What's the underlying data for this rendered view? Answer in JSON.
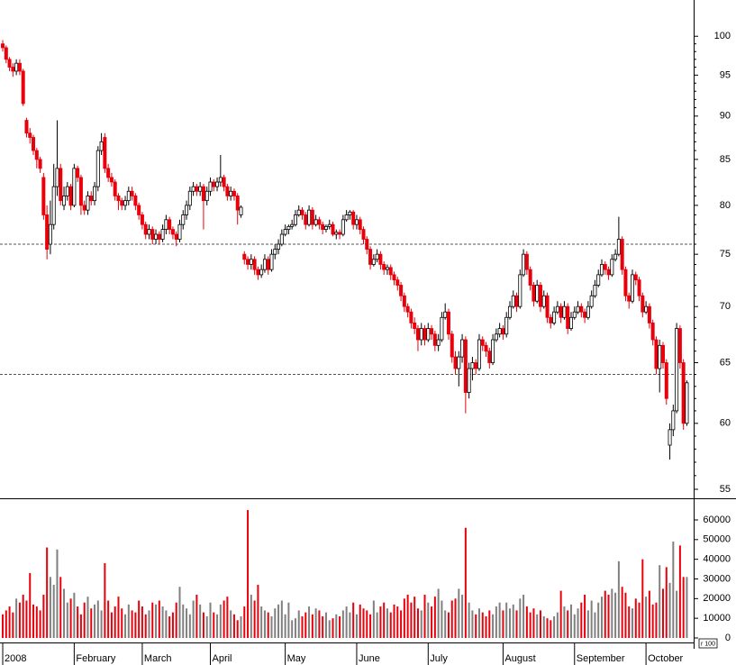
{
  "chart_data": {
    "type": "candlestick",
    "up_color": "#ffffff",
    "down_color": "#e8000b",
    "outline_color": "#000000",
    "volume_up_color": "#808080",
    "reference_lines": [
      76,
      64
    ],
    "log_scale": true,
    "ylim": [
      54.35,
      104.9
    ],
    "yticks": [
      55,
      60,
      65,
      70,
      75,
      80,
      85,
      90,
      95,
      100
    ],
    "volume_ylim": [
      -2300,
      71000
    ],
    "volume_yticks": [
      0,
      10000,
      20000,
      30000,
      40000,
      50000,
      60000
    ],
    "xlim": [
      -0.8,
      203
    ],
    "xticks": [
      {
        "value": 0,
        "label": "2008"
      },
      {
        "value": 21,
        "label": "February"
      },
      {
        "value": 41,
        "label": "March"
      },
      {
        "value": 61,
        "label": "April"
      },
      {
        "value": 83,
        "label": "May"
      },
      {
        "value": 104,
        "label": "June"
      },
      {
        "value": 125,
        "label": "July"
      },
      {
        "value": 147,
        "label": "August"
      },
      {
        "value": 168,
        "label": "September"
      },
      {
        "value": 189,
        "label": "October"
      }
    ],
    "corner_label": "r 100",
    "ohlc": [
      [
        99,
        99.5,
        98,
        98.5
      ],
      [
        98.5,
        98.8,
        96.5,
        97
      ],
      [
        97,
        97.3,
        95.5,
        96
      ],
      [
        96,
        96.5,
        94.8,
        95.5
      ],
      [
        95.5,
        97,
        95,
        96.5
      ],
      [
        96.5,
        97,
        95,
        95.5
      ],
      [
        95.5,
        95.8,
        91.2,
        91.5
      ],
      [
        89.5,
        89.8,
        87.5,
        88
      ],
      [
        88,
        88.6,
        86.8,
        87.5
      ],
      [
        87.5,
        87.8,
        85.5,
        86
      ],
      [
        86,
        86.3,
        84,
        85
      ],
      [
        85,
        85.3,
        83.5,
        84
      ],
      [
        83,
        83.5,
        78.5,
        79
      ],
      [
        79,
        80,
        74.5,
        75.5
      ],
      [
        76,
        80.5,
        75,
        78
      ],
      [
        78,
        84.5,
        77.5,
        82
      ],
      [
        82,
        89.5,
        81,
        84
      ],
      [
        84,
        84.5,
        80,
        80.5
      ],
      [
        80,
        82,
        79.5,
        81
      ],
      [
        81,
        82.5,
        80.5,
        82
      ],
      [
        82,
        82.3,
        79.5,
        80
      ],
      [
        80,
        84.5,
        79.8,
        84
      ],
      [
        84,
        84.3,
        82.5,
        83
      ],
      [
        83,
        83.3,
        79,
        80
      ],
      [
        80,
        80.5,
        79,
        79.5
      ],
      [
        79.5,
        81.5,
        79,
        81
      ],
      [
        81,
        81.5,
        80,
        80.5
      ],
      [
        80.5,
        82.5,
        80,
        82
      ],
      [
        82,
        86.5,
        81.5,
        86
      ],
      [
        86,
        88,
        85.5,
        87
      ],
      [
        87.5,
        88,
        83.5,
        84
      ],
      [
        84,
        84.5,
        82.5,
        83
      ],
      [
        83,
        83.5,
        82,
        82.5
      ],
      [
        82.5,
        82.8,
        80.5,
        81
      ],
      [
        81,
        81.3,
        79.5,
        80.5
      ],
      [
        80.5,
        80.8,
        79.5,
        80
      ],
      [
        80,
        81,
        79.5,
        80.5
      ],
      [
        80.5,
        82,
        80,
        81.5
      ],
      [
        81.5,
        82,
        80.5,
        81
      ],
      [
        81,
        81.3,
        79.5,
        80
      ],
      [
        80,
        80.3,
        78.5,
        79
      ],
      [
        79,
        79.3,
        77.5,
        78
      ],
      [
        78,
        78.3,
        76.5,
        77
      ],
      [
        77,
        78,
        76.5,
        77.5
      ],
      [
        77.5,
        77.8,
        76,
        76.5
      ],
      [
        76.5,
        77.5,
        76,
        77
      ],
      [
        77,
        77.3,
        76,
        76.5
      ],
      [
        76.5,
        78,
        76.2,
        77.5
      ],
      [
        77.5,
        79,
        77,
        78.5
      ],
      [
        78.5,
        78.8,
        77,
        77.5
      ],
      [
        77.5,
        77.8,
        76.5,
        77
      ],
      [
        77,
        77.3,
        75.8,
        76.5
      ],
      [
        76.5,
        78.5,
        76.2,
        78
      ],
      [
        78,
        79.5,
        77.5,
        79
      ],
      [
        79,
        80.5,
        78.5,
        80
      ],
      [
        80,
        82,
        79.5,
        81.5
      ],
      [
        81.5,
        82.5,
        81,
        82
      ],
      [
        82,
        82.3,
        81,
        81.5
      ],
      [
        81.5,
        82.5,
        81,
        82
      ],
      [
        82,
        82.3,
        77.5,
        80.5
      ],
      [
        80.5,
        82,
        80,
        81.5
      ],
      [
        81.5,
        83,
        81,
        82.5
      ],
      [
        82.5,
        82.8,
        81.5,
        82
      ],
      [
        82,
        83,
        81.5,
        82.5
      ],
      [
        82.5,
        85.5,
        82,
        83
      ],
      [
        83,
        83.3,
        81.5,
        82
      ],
      [
        82,
        82.3,
        80.5,
        81
      ],
      [
        81,
        82,
        80.5,
        81.5
      ],
      [
        81.5,
        81.8,
        80.5,
        81
      ],
      [
        81,
        81.3,
        78,
        79.5
      ],
      [
        79,
        80,
        78.7,
        79.8
      ],
      [
        75,
        75.3,
        74,
        74.5
      ],
      [
        74.5,
        74.8,
        73.5,
        74
      ],
      [
        74,
        75,
        73.5,
        74.5
      ],
      [
        74.5,
        74.8,
        73,
        73.5
      ],
      [
        73.5,
        73.8,
        72.5,
        73
      ],
      [
        73,
        74,
        72.7,
        73.5
      ],
      [
        73.5,
        75,
        73.2,
        74.5
      ],
      [
        74.5,
        74.8,
        73,
        73.5
      ],
      [
        73.5,
        75.5,
        73.3,
        75
      ],
      [
        75,
        76,
        74.5,
        75.5
      ],
      [
        75.5,
        76.5,
        75,
        76
      ],
      [
        76,
        77.5,
        75.8,
        77
      ],
      [
        77,
        78,
        76.8,
        77.5
      ],
      [
        77.5,
        78,
        77,
        77.8
      ],
      [
        77.8,
        78.5,
        77.5,
        78
      ],
      [
        78,
        79.5,
        77.8,
        79
      ],
      [
        79,
        80,
        78.8,
        79.5
      ],
      [
        79.5,
        79.8,
        78.5,
        79
      ],
      [
        79,
        79.3,
        77.5,
        78
      ],
      [
        78,
        80,
        77.8,
        79.5
      ],
      [
        79.5,
        79.8,
        77.5,
        78
      ],
      [
        78,
        79,
        77.8,
        78.5
      ],
      [
        78.5,
        78.8,
        77.5,
        78
      ],
      [
        78,
        78.3,
        77,
        77.5
      ],
      [
        77.5,
        78,
        77.2,
        77.8
      ],
      [
        77.8,
        78.5,
        77.5,
        78
      ],
      [
        78,
        78.3,
        76.8,
        77
      ],
      [
        77,
        77.5,
        76.5,
        77.2
      ],
      [
        77.2,
        77.5,
        76.5,
        77
      ],
      [
        77,
        79,
        76.8,
        78.5
      ],
      [
        78.5,
        79.5,
        78.3,
        79
      ],
      [
        79,
        79.5,
        78.5,
        79.3
      ],
      [
        79.3,
        79.5,
        77.5,
        78
      ],
      [
        78,
        79,
        77.5,
        78.5
      ],
      [
        78.5,
        78.8,
        77,
        77.5
      ],
      [
        77.5,
        77.8,
        76,
        76.5
      ],
      [
        76.5,
        76.8,
        75,
        75.5
      ],
      [
        75.5,
        75.8,
        73.5,
        74
      ],
      [
        74,
        75,
        73.8,
        74.5
      ],
      [
        74.5,
        75.5,
        74.2,
        75
      ],
      [
        75,
        75.3,
        73.5,
        74
      ],
      [
        74,
        74.3,
        73,
        73.5
      ],
      [
        73.5,
        74,
        73,
        73.7
      ],
      [
        73.7,
        74,
        72.5,
        73
      ],
      [
        73,
        73.3,
        72,
        72.5
      ],
      [
        72.5,
        72.8,
        71.5,
        72
      ],
      [
        72,
        72.3,
        70.5,
        71
      ],
      [
        71,
        71.3,
        69.5,
        70
      ],
      [
        70,
        70.3,
        69,
        69.5
      ],
      [
        69.5,
        69.8,
        68,
        68.5
      ],
      [
        68.5,
        69,
        67.5,
        68
      ],
      [
        68,
        68.3,
        66,
        67
      ],
      [
        67,
        68.5,
        66.5,
        68
      ],
      [
        68,
        68.3,
        66.5,
        67
      ],
      [
        67,
        68.5,
        66.8,
        68
      ],
      [
        68,
        68.3,
        67,
        67.5
      ],
      [
        67.5,
        67.8,
        66,
        66.5
      ],
      [
        66.5,
        67.5,
        66,
        67
      ],
      [
        67,
        69.5,
        66.8,
        69
      ],
      [
        69,
        70.3,
        68.8,
        69.5
      ],
      [
        69.5,
        69.8,
        67,
        67.5
      ],
      [
        67.5,
        67.8,
        65,
        65.5
      ],
      [
        65.5,
        66,
        64,
        64.5
      ],
      [
        64.5,
        66,
        63,
        65.5
      ],
      [
        65.5,
        67.5,
        65,
        67
      ],
      [
        67,
        67.3,
        60.8,
        62.5
      ],
      [
        62.5,
        65,
        62,
        64.5
      ],
      [
        64.5,
        65.5,
        63.5,
        65
      ],
      [
        65,
        65.3,
        64,
        64.5
      ],
      [
        64.5,
        67.5,
        64.3,
        67
      ],
      [
        67,
        67.3,
        66,
        66.5
      ],
      [
        66.5,
        66.8,
        65.5,
        66
      ],
      [
        66,
        66.3,
        64.5,
        65
      ],
      [
        65,
        67.5,
        64.8,
        67
      ],
      [
        67,
        68,
        66.8,
        67.5
      ],
      [
        67.5,
        68.5,
        67.2,
        68
      ],
      [
        68,
        68.3,
        67,
        67.5
      ],
      [
        67.5,
        69.5,
        67.2,
        69
      ],
      [
        69,
        70.5,
        68.8,
        70
      ],
      [
        70,
        71.5,
        69.8,
        71
      ],
      [
        71,
        71.3,
        69.5,
        70
      ],
      [
        70,
        73.5,
        69.8,
        73
      ],
      [
        73,
        75.5,
        72.8,
        75
      ],
      [
        75,
        75.3,
        73,
        73.5
      ],
      [
        73.5,
        73.8,
        71.5,
        72
      ],
      [
        72,
        72.3,
        70,
        70.5
      ],
      [
        70.5,
        72.5,
        70.3,
        72
      ],
      [
        72,
        72.3,
        69.5,
        70
      ],
      [
        70,
        71.5,
        69.8,
        71
      ],
      [
        71,
        71.3,
        68.5,
        69
      ],
      [
        69,
        69.3,
        68,
        68.5
      ],
      [
        68.5,
        70,
        68.3,
        69.5
      ],
      [
        69.5,
        70.5,
        69.3,
        70
      ],
      [
        70,
        70.3,
        68.5,
        69
      ],
      [
        69,
        70.5,
        68.8,
        70
      ],
      [
        70,
        70.3,
        67.5,
        68
      ],
      [
        68,
        69.5,
        67.8,
        69
      ],
      [
        69,
        70,
        68.8,
        69.5
      ],
      [
        69.5,
        70.5,
        69.3,
        70
      ],
      [
        70,
        70.3,
        69,
        69.5
      ],
      [
        69.5,
        69.8,
        68.5,
        69
      ],
      [
        69,
        70.5,
        68.8,
        70
      ],
      [
        70,
        71.5,
        69.8,
        71
      ],
      [
        71,
        72.5,
        70.8,
        72
      ],
      [
        72,
        73.5,
        71.8,
        73
      ],
      [
        73,
        74.5,
        72.8,
        74
      ],
      [
        74,
        74.3,
        73,
        73.5
      ],
      [
        73.5,
        73.8,
        72.5,
        73
      ],
      [
        73,
        75,
        72.8,
        74.5
      ],
      [
        74.5,
        75.5,
        74.3,
        75
      ],
      [
        75,
        78.8,
        74.8,
        76.5
      ],
      [
        76.5,
        76.8,
        73,
        73.5
      ],
      [
        73.5,
        73.8,
        70.5,
        71
      ],
      [
        71,
        71.3,
        69.8,
        70.5
      ],
      [
        70.5,
        73.5,
        70.3,
        73
      ],
      [
        73,
        73.3,
        72,
        72.5
      ],
      [
        72.5,
        72.8,
        70.5,
        71
      ],
      [
        71,
        71.3,
        69,
        69.5
      ],
      [
        69.5,
        70.5,
        69.3,
        70
      ],
      [
        70,
        70.3,
        68,
        68.5
      ],
      [
        68.5,
        68.8,
        66.5,
        67
      ],
      [
        67,
        67.3,
        64,
        64.5
      ],
      [
        64.5,
        67,
        62.5,
        66.5
      ],
      [
        66.5,
        66.8,
        64.5,
        65
      ],
      [
        65,
        65.3,
        61.5,
        62
      ],
      [
        58.3,
        60,
        57.2,
        59.5
      ],
      [
        59.5,
        61.5,
        59,
        61
      ],
      [
        61,
        68.5,
        60.8,
        68
      ],
      [
        68,
        68.3,
        64.5,
        65
      ],
      [
        65,
        65.3,
        59.5,
        60
      ],
      [
        60,
        63.5,
        59.8,
        63.3
      ]
    ],
    "volume": [
      12000,
      14000,
      16000,
      13000,
      20000,
      18000,
      22000,
      19000,
      33000,
      17000,
      16000,
      14000,
      22000,
      46000,
      31000,
      27000,
      45000,
      31000,
      25000,
      18000,
      20000,
      23000,
      16000,
      12000,
      18000,
      21000,
      15000,
      17000,
      19000,
      14000,
      38000,
      19000,
      13000,
      16000,
      21000,
      15000,
      12000,
      17000,
      14000,
      13000,
      19000,
      16000,
      12000,
      14000,
      18000,
      17000,
      19000,
      16000,
      14000,
      11000,
      13000,
      18000,
      26000,
      17000,
      15000,
      12000,
      19000,
      22000,
      17000,
      13000,
      11000,
      18000,
      13000,
      12000,
      17000,
      19000,
      21000,
      14000,
      12000,
      9000,
      11000,
      16000,
      65000,
      22000,
      19000,
      27000,
      16000,
      14000,
      13000,
      11000,
      15000,
      17000,
      19000,
      12000,
      18000,
      9000,
      10000,
      14000,
      11000,
      13000,
      16000,
      12000,
      15000,
      14000,
      11000,
      13000,
      9000,
      10000,
      12000,
      11000,
      14000,
      16000,
      13000,
      18000,
      12000,
      17000,
      15000,
      14000,
      12000,
      19000,
      13000,
      16000,
      18000,
      15000,
      13000,
      17000,
      16000,
      14000,
      20000,
      22000,
      18000,
      21000,
      15000,
      14000,
      22000,
      18000,
      16000,
      21000,
      25000,
      19000,
      14000,
      13000,
      19000,
      20000,
      25000,
      22000,
      56000,
      18000,
      14000,
      12000,
      15000,
      13000,
      11000,
      14000,
      12000,
      16000,
      18000,
      14000,
      18000,
      15000,
      17000,
      14000,
      20000,
      22000,
      16000,
      13000,
      15000,
      12000,
      14000,
      11000,
      10000,
      9000,
      11000,
      13000,
      24000,
      16000,
      14000,
      17000,
      12000,
      15000,
      18000,
      22000,
      14000,
      19000,
      13000,
      18000,
      21000,
      24000,
      22000,
      25000,
      23000,
      39000,
      26000,
      23000,
      16000,
      15000,
      20000,
      18000,
      40000,
      21000,
      24000,
      17000,
      18000,
      37000,
      25000,
      36000,
      28000,
      49000,
      24000,
      47000,
      31000,
      31000
    ]
  }
}
